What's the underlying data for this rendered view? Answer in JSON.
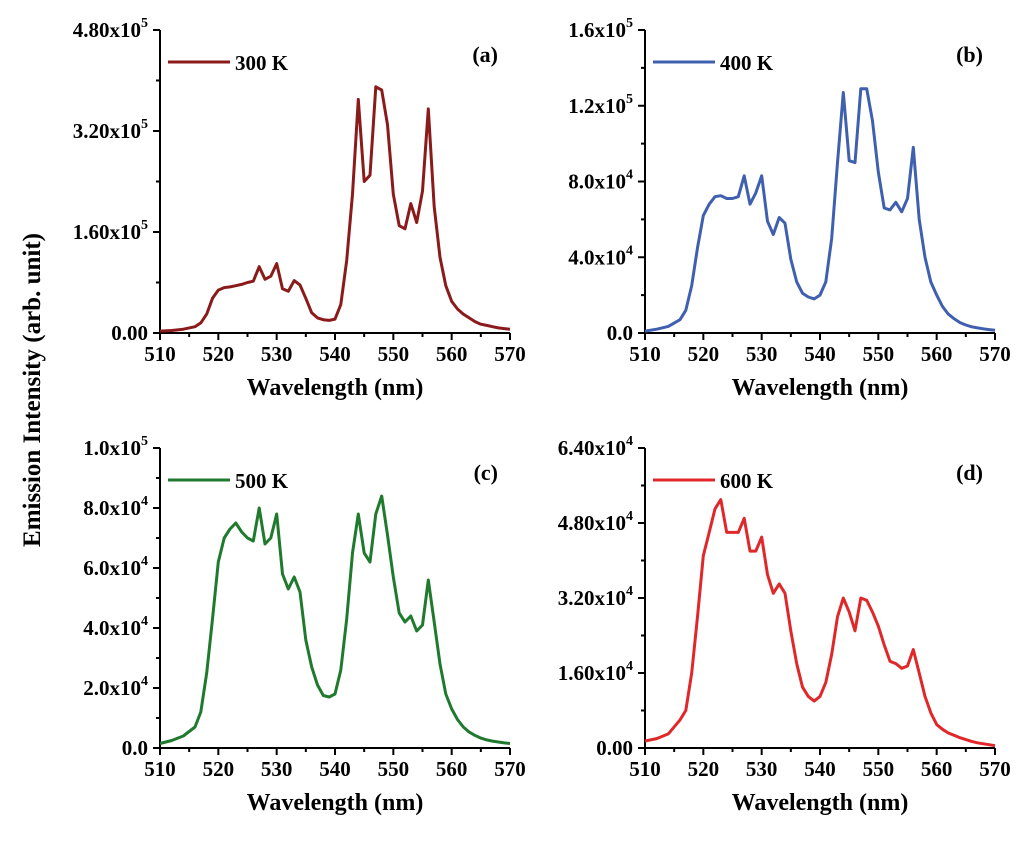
{
  "figure": {
    "ylabel": "Emission Intensity (arb. unit)"
  },
  "chart_data": [
    {
      "type": "line",
      "panel": "(a)",
      "xlabel": "Wavelength (nm)",
      "xlim": [
        510,
        570
      ],
      "ylim": [
        0,
        480000
      ],
      "x_ticks": [
        510,
        520,
        530,
        540,
        550,
        560,
        570
      ],
      "y_ticks": [
        0,
        160000,
        320000,
        480000
      ],
      "y_tick_labels": [
        {
          "mantissa": "0.00",
          "exp": ""
        },
        {
          "mantissa": "1.60x10",
          "exp": "5"
        },
        {
          "mantissa": "3.20x10",
          "exp": "5"
        },
        {
          "mantissa": "4.80x10",
          "exp": "5"
        }
      ],
      "legend_position": "top-left",
      "series": [
        {
          "name": "300 K",
          "color": "#8B1A1A",
          "x": [
            510,
            512,
            514,
            516,
            517,
            518,
            519,
            520,
            521,
            522,
            523,
            524,
            525,
            526,
            527,
            528,
            529,
            530,
            531,
            532,
            533,
            534,
            535,
            536,
            537,
            538,
            539,
            540,
            541,
            542,
            543,
            544,
            545,
            546,
            547,
            548,
            549,
            550,
            551,
            552,
            553,
            554,
            555,
            556,
            557,
            558,
            559,
            560,
            561,
            562,
            563,
            564,
            565,
            566,
            567,
            568,
            569,
            570
          ],
          "y": [
            3000,
            4000,
            6000,
            10000,
            16000,
            30000,
            55000,
            68000,
            72000,
            73000,
            75000,
            77000,
            80000,
            82000,
            105000,
            85000,
            90000,
            110000,
            70000,
            66000,
            83000,
            76000,
            55000,
            32000,
            24000,
            21000,
            20000,
            22000,
            45000,
            115000,
            220000,
            370000,
            240000,
            250000,
            390000,
            385000,
            330000,
            220000,
            170000,
            165000,
            205000,
            175000,
            225000,
            355000,
            200000,
            120000,
            75000,
            50000,
            38000,
            30000,
            24000,
            18000,
            14000,
            12000,
            10000,
            8000,
            7000,
            6000
          ]
        }
      ]
    },
    {
      "type": "line",
      "panel": "(b)",
      "xlabel": "Wavelength (nm)",
      "xlim": [
        510,
        570
      ],
      "ylim": [
        0,
        160000
      ],
      "x_ticks": [
        510,
        520,
        530,
        540,
        550,
        560,
        570
      ],
      "y_ticks": [
        0,
        40000,
        80000,
        120000,
        160000
      ],
      "y_tick_labels": [
        {
          "mantissa": "0.0",
          "exp": ""
        },
        {
          "mantissa": "4.0x10",
          "exp": "4"
        },
        {
          "mantissa": "8.0x10",
          "exp": "4"
        },
        {
          "mantissa": "1.2x10",
          "exp": "5"
        },
        {
          "mantissa": "1.6x10",
          "exp": "5"
        }
      ],
      "legend_position": "top-left",
      "series": [
        {
          "name": "400 K",
          "color": "#3F5FAF",
          "x": [
            510,
            512,
            514,
            516,
            517,
            518,
            519,
            520,
            521,
            522,
            523,
            524,
            525,
            526,
            527,
            528,
            529,
            530,
            531,
            532,
            533,
            534,
            535,
            536,
            537,
            538,
            539,
            540,
            541,
            542,
            543,
            544,
            545,
            546,
            547,
            548,
            549,
            550,
            551,
            552,
            553,
            554,
            555,
            556,
            557,
            558,
            559,
            560,
            561,
            562,
            563,
            564,
            565,
            566,
            567,
            568,
            569,
            570
          ],
          "y": [
            1000,
            2000,
            3500,
            7000,
            12000,
            25000,
            45000,
            62000,
            68000,
            72000,
            72500,
            71000,
            71000,
            72000,
            83000,
            68000,
            74000,
            83000,
            59000,
            52000,
            61000,
            58000,
            39000,
            27000,
            21000,
            19000,
            18000,
            20000,
            27000,
            50000,
            90000,
            127000,
            91000,
            90000,
            129000,
            129000,
            112000,
            85000,
            66000,
            65000,
            69000,
            64000,
            71000,
            98000,
            60000,
            40000,
            27000,
            20000,
            14000,
            10000,
            7500,
            5500,
            4200,
            3300,
            2700,
            2200,
            1800,
            1500
          ]
        }
      ]
    },
    {
      "type": "line",
      "panel": "(c)",
      "xlabel": "Wavelength (nm)",
      "xlim": [
        510,
        570
      ],
      "ylim": [
        0,
        100000
      ],
      "x_ticks": [
        510,
        520,
        530,
        540,
        550,
        560,
        570
      ],
      "y_ticks": [
        0,
        20000,
        40000,
        60000,
        80000,
        100000
      ],
      "y_tick_labels": [
        {
          "mantissa": "0.0",
          "exp": ""
        },
        {
          "mantissa": "2.0x10",
          "exp": "4"
        },
        {
          "mantissa": "4.0x10",
          "exp": "4"
        },
        {
          "mantissa": "6.0x10",
          "exp": "4"
        },
        {
          "mantissa": "8.0x10",
          "exp": "4"
        },
        {
          "mantissa": "1.0x10",
          "exp": "5"
        }
      ],
      "legend_position": "top-left",
      "series": [
        {
          "name": "500 K",
          "color": "#1F7A2E",
          "x": [
            510,
            512,
            514,
            516,
            517,
            518,
            519,
            520,
            521,
            522,
            523,
            524,
            525,
            526,
            527,
            528,
            529,
            530,
            531,
            532,
            533,
            534,
            535,
            536,
            537,
            538,
            539,
            540,
            541,
            542,
            543,
            544,
            545,
            546,
            547,
            548,
            549,
            550,
            551,
            552,
            553,
            554,
            555,
            556,
            557,
            558,
            559,
            560,
            561,
            562,
            563,
            564,
            565,
            566,
            567,
            568,
            569,
            570
          ],
          "y": [
            1500,
            2500,
            4000,
            7000,
            12000,
            25000,
            43000,
            62000,
            70000,
            73000,
            75000,
            72000,
            70000,
            69000,
            80000,
            68000,
            70000,
            78000,
            58000,
            53000,
            57000,
            52000,
            36000,
            27000,
            21000,
            17500,
            17000,
            18000,
            26000,
            43000,
            65000,
            78000,
            65000,
            62000,
            78000,
            84000,
            71000,
            57000,
            45000,
            42000,
            44000,
            39000,
            41000,
            56000,
            42000,
            28000,
            18000,
            13000,
            9500,
            7000,
            5300,
            4200,
            3300,
            2700,
            2300,
            2000,
            1700,
            1500
          ]
        }
      ]
    },
    {
      "type": "line",
      "panel": "(d)",
      "xlabel": "Wavelength (nm)",
      "xlim": [
        510,
        570
      ],
      "ylim": [
        0,
        64000
      ],
      "x_ticks": [
        510,
        520,
        530,
        540,
        550,
        560,
        570
      ],
      "y_ticks": [
        0,
        16000,
        32000,
        48000,
        64000
      ],
      "y_tick_labels": [
        {
          "mantissa": "0.00",
          "exp": ""
        },
        {
          "mantissa": "1.60x10",
          "exp": "4"
        },
        {
          "mantissa": "3.20x10",
          "exp": "4"
        },
        {
          "mantissa": "4.80x10",
          "exp": "4"
        },
        {
          "mantissa": "6.40x10",
          "exp": "4"
        }
      ],
      "legend_position": "top-left",
      "series": [
        {
          "name": "600 K",
          "color": "#E0282A",
          "x": [
            510,
            512,
            514,
            516,
            517,
            518,
            519,
            520,
            521,
            522,
            523,
            524,
            525,
            526,
            527,
            528,
            529,
            530,
            531,
            532,
            533,
            534,
            535,
            536,
            537,
            538,
            539,
            540,
            541,
            542,
            543,
            544,
            545,
            546,
            547,
            548,
            549,
            550,
            551,
            552,
            553,
            554,
            555,
            556,
            557,
            558,
            559,
            560,
            561,
            562,
            563,
            564,
            565,
            566,
            567,
            568,
            569,
            570
          ],
          "y": [
            1500,
            2000,
            3000,
            6000,
            8000,
            16000,
            28000,
            41000,
            46000,
            51000,
            53000,
            46000,
            46000,
            46000,
            49000,
            42000,
            42000,
            45000,
            37000,
            33000,
            35000,
            33000,
            25000,
            18000,
            13000,
            11000,
            10000,
            11000,
            14000,
            20000,
            28000,
            32000,
            29000,
            25000,
            32000,
            31500,
            29000,
            26000,
            22000,
            18500,
            18000,
            17000,
            17500,
            21000,
            16000,
            11000,
            7500,
            5000,
            4000,
            3200,
            2700,
            2200,
            1800,
            1400,
            1100,
            900,
            700,
            500
          ]
        }
      ]
    }
  ]
}
